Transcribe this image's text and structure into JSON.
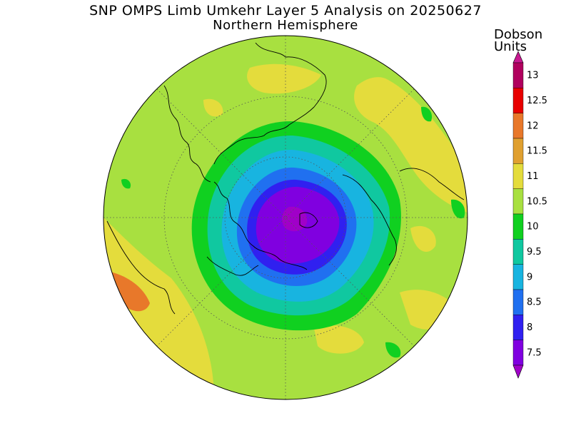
{
  "title": "SNP OMPS Limb Umkehr Layer 5 Analysis on 20250627",
  "subtitle": "Northern Hemisphere",
  "units_label": [
    "Dobson",
    "Units"
  ],
  "colorbar": {
    "levels": [
      {
        "value": "13",
        "color": "#b0005e"
      },
      {
        "value": "12.5",
        "color": "#e80000"
      },
      {
        "value": "12",
        "color": "#e8782a"
      },
      {
        "value": "11.5",
        "color": "#e0a030"
      },
      {
        "value": "11",
        "color": "#e4dc3c"
      },
      {
        "value": "10.5",
        "color": "#a8e040"
      },
      {
        "value": "10",
        "color": "#10d020"
      },
      {
        "value": "9.5",
        "color": "#10c8a0"
      },
      {
        "value": "9",
        "color": "#18b4e0"
      },
      {
        "value": "8.5",
        "color": "#2070f0"
      },
      {
        "value": "8",
        "color": "#3020f0"
      },
      {
        "value": "7.5",
        "color": "#8000e0"
      }
    ],
    "over_color": "#c81890",
    "under_color": "#a000c8"
  },
  "map": {
    "projection": "polar-stereographic-north",
    "background_color": "#a8e040"
  }
}
